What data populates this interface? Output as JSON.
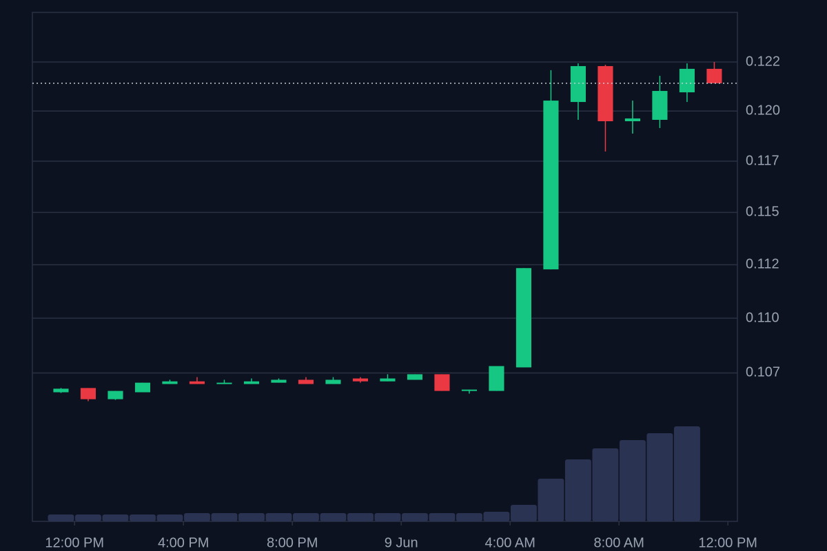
{
  "chart_data": {
    "type": "candlestick",
    "log_scale": true,
    "grid": true,
    "up_color": "#16c784",
    "down_color": "#ea3943",
    "volume_color": "#2b3352",
    "x": [
      11.5,
      12.5,
      13.5,
      14.5,
      15.5,
      16.5,
      17.5,
      18.5,
      19.5,
      20.5,
      21.5,
      22.5,
      23.5,
      24.5,
      25.5,
      26.5,
      27.5,
      28.5,
      29.5,
      30.5,
      31.5,
      32.5,
      33.5,
      34.5,
      35.5
    ],
    "open": [
      0.10663,
      0.10682,
      0.10632,
      0.10663,
      0.107,
      0.10712,
      0.107,
      0.107,
      0.10706,
      0.10719,
      0.107,
      0.10725,
      0.10712,
      0.10719,
      0.10744,
      0.10669,
      0.10669,
      0.10775,
      0.11228,
      0.12046,
      0.12229,
      0.11949,
      0.11956,
      0.12095,
      0.12215
    ],
    "high": [
      0.10682,
      0.10682,
      0.10669,
      0.10706,
      0.10719,
      0.10731,
      0.10719,
      0.10725,
      0.10725,
      0.10731,
      0.10731,
      0.10731,
      0.10744,
      0.10744,
      0.10744,
      0.10675,
      0.10781,
      0.11234,
      0.12208,
      0.12243,
      0.12236,
      0.12053,
      0.12179,
      0.12243,
      0.1225
    ],
    "low": [
      0.1066,
      0.10623,
      0.10629,
      0.10663,
      0.107,
      0.107,
      0.107,
      0.107,
      0.10706,
      0.107,
      0.107,
      0.10706,
      0.10712,
      0.10719,
      0.10669,
      0.10657,
      0.10669,
      0.10775,
      0.11228,
      0.11956,
      0.11798,
      0.11887,
      0.11915,
      0.12046,
      0.12141
    ],
    "close": [
      0.10679,
      0.10632,
      0.10669,
      0.10706,
      0.10712,
      0.107,
      0.10706,
      0.10712,
      0.10719,
      0.107,
      0.10719,
      0.10712,
      0.10725,
      0.10744,
      0.10669,
      0.10675,
      0.10781,
      0.11234,
      0.12053,
      0.12229,
      0.11949,
      0.11963,
      0.12102,
      0.12215,
      0.12141
    ],
    "volume": [
      10,
      10,
      10,
      10,
      10,
      12,
      12,
      12,
      12,
      12,
      12,
      12,
      12,
      12,
      12,
      12,
      14,
      24,
      62,
      90,
      106,
      118,
      128,
      138,
      null
    ],
    "volume_lim": [
      0,
      180
    ],
    "xlim": [
      10.45,
      36.35
    ],
    "xticks": [
      {
        "value": 12,
        "label": "12:00 PM"
      },
      {
        "value": 16,
        "label": "4:00 PM"
      },
      {
        "value": 20,
        "label": "8:00 PM"
      },
      {
        "value": 24,
        "label": "9 Jun"
      },
      {
        "value": 28,
        "label": "4:00 AM"
      },
      {
        "value": 32,
        "label": "8:00 AM"
      },
      {
        "value": 36,
        "label": "12:00 PM"
      }
    ],
    "ylim": [
      0.101,
      0.12508
    ],
    "yticks": [
      {
        "value": 0.1225,
        "label": "0.122"
      },
      {
        "value": 0.12,
        "label": "0.120"
      },
      {
        "value": 0.1175,
        "label": "0.117"
      },
      {
        "value": 0.115,
        "label": "0.115"
      },
      {
        "value": 0.1125,
        "label": "0.112"
      },
      {
        "value": 0.11,
        "label": "0.110"
      },
      {
        "value": 0.1075,
        "label": "0.107"
      }
    ]
  }
}
